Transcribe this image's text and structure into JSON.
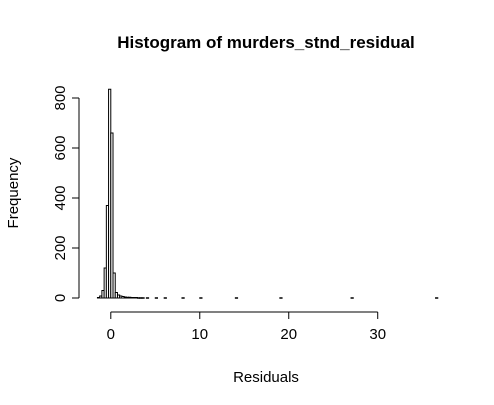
{
  "chart_data": {
    "type": "bar",
    "title": "Histogram of murders_stnd_residual",
    "xlabel": "Residuals",
    "ylabel": "Frequency",
    "xlim": [
      -2,
      37
    ],
    "ylim": [
      0,
      840
    ],
    "x_ticks": [
      0,
      10,
      20,
      30
    ],
    "y_ticks": [
      0,
      200,
      400,
      600,
      800
    ],
    "bin_width": 0.25,
    "bins": [
      {
        "x0": -1.5,
        "x1": -1.25,
        "count": 2
      },
      {
        "x0": -1.25,
        "x1": -1.0,
        "count": 8
      },
      {
        "x0": -1.0,
        "x1": -0.75,
        "count": 30
      },
      {
        "x0": -0.75,
        "x1": -0.5,
        "count": 120
      },
      {
        "x0": -0.5,
        "x1": -0.25,
        "count": 370
      },
      {
        "x0": -0.25,
        "x1": 0.0,
        "count": 835
      },
      {
        "x0": 0.0,
        "x1": 0.25,
        "count": 660
      },
      {
        "x0": 0.25,
        "x1": 0.5,
        "count": 100
      },
      {
        "x0": 0.5,
        "x1": 0.75,
        "count": 22
      },
      {
        "x0": 0.75,
        "x1": 1.0,
        "count": 12
      },
      {
        "x0": 1.0,
        "x1": 1.25,
        "count": 8
      },
      {
        "x0": 1.25,
        "x1": 1.5,
        "count": 6
      },
      {
        "x0": 1.5,
        "x1": 1.75,
        "count": 4
      },
      {
        "x0": 1.75,
        "x1": 2.0,
        "count": 3
      },
      {
        "x0": 2.0,
        "x1": 2.25,
        "count": 3
      },
      {
        "x0": 2.25,
        "x1": 2.5,
        "count": 2
      },
      {
        "x0": 2.5,
        "x1": 2.75,
        "count": 2
      },
      {
        "x0": 2.75,
        "x1": 3.0,
        "count": 2
      },
      {
        "x0": 3.0,
        "x1": 3.25,
        "count": 1
      },
      {
        "x0": 3.25,
        "x1": 3.5,
        "count": 1
      },
      {
        "x0": 3.5,
        "x1": 3.75,
        "count": 1
      },
      {
        "x0": 4.0,
        "x1": 4.25,
        "count": 1
      },
      {
        "x0": 5.0,
        "x1": 5.25,
        "count": 1
      },
      {
        "x0": 6.0,
        "x1": 6.25,
        "count": 1
      },
      {
        "x0": 8.0,
        "x1": 8.25,
        "count": 1
      },
      {
        "x0": 10.0,
        "x1": 10.25,
        "count": 1
      },
      {
        "x0": 14.0,
        "x1": 14.25,
        "count": 1
      },
      {
        "x0": 19.0,
        "x1": 19.25,
        "count": 1
      },
      {
        "x0": 27.0,
        "x1": 27.25,
        "count": 1
      },
      {
        "x0": 36.5,
        "x1": 36.75,
        "count": 1
      }
    ]
  }
}
